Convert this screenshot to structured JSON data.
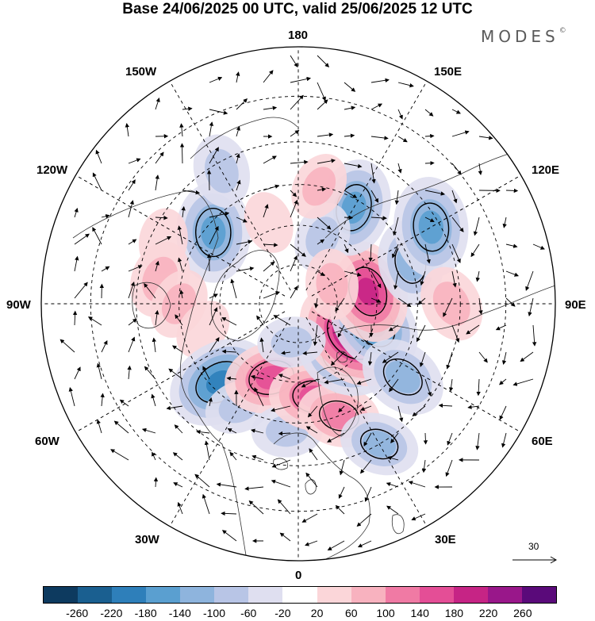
{
  "title": "Base 24/06/2025 00 UTC, valid 25/06/2025 12 UTC",
  "brand": {
    "name": "MODES",
    "mark": "©"
  },
  "map": {
    "projection": "north-polar-stereographic",
    "longitude_labels": {
      "top": "180",
      "bottom": "0",
      "left": "90W",
      "right": "90E",
      "upper_left_1": "150W",
      "upper_left_2": "120W",
      "lower_left_1": "60W",
      "lower_left_2": "30W",
      "upper_right_1": "150E",
      "upper_right_2": "120E",
      "lower_right_1": "60E",
      "lower_right_2": "30E"
    },
    "reference_vector": {
      "value": "30"
    },
    "anomalies": [
      {
        "lon": -130,
        "colat": 28,
        "value": -170
      },
      {
        "lon": -150,
        "colat": 38,
        "value": -80
      },
      {
        "lon": -160,
        "colat": 22,
        "value": 40
      },
      {
        "lon": -115,
        "colat": 37,
        "value": 50
      },
      {
        "lon": -100,
        "colat": 35,
        "value": 90
      },
      {
        "lon": -90,
        "colat": 30,
        "value": 70
      },
      {
        "lon": -75,
        "colat": 25,
        "value": 40
      },
      {
        "lon": -45,
        "colat": 28,
        "value": -190
      },
      {
        "lon": -30,
        "colat": 30,
        "value": -60
      },
      {
        "lon": -20,
        "colat": 20,
        "value": 150
      },
      {
        "lon": -5,
        "colat": 32,
        "value": -70
      },
      {
        "lon": 10,
        "colat": 24,
        "value": 140
      },
      {
        "lon": 20,
        "colat": 30,
        "value": 110
      },
      {
        "lon": 30,
        "colat": 40,
        "value": -100
      },
      {
        "lon": 40,
        "colat": 18,
        "value": -150
      },
      {
        "lon": 60,
        "colat": 16,
        "value": 230
      },
      {
        "lon": 75,
        "colat": 20,
        "value": -180
      },
      {
        "lon": 100,
        "colat": 18,
        "value": 180
      },
      {
        "lon": 110,
        "colat": 30,
        "value": -120
      },
      {
        "lon": 120,
        "colat": 38,
        "value": -170
      },
      {
        "lon": 90,
        "colat": 38,
        "value": 90
      },
      {
        "lon": 55,
        "colat": 32,
        "value": -130
      },
      {
        "lon": 150,
        "colat": 28,
        "value": -160
      },
      {
        "lon": 160,
        "colat": 18,
        "value": -70
      },
      {
        "lon": 170,
        "colat": 30,
        "value": 60
      },
      {
        "lon": -10,
        "colat": 10,
        "value": -60
      },
      {
        "lon": 120,
        "colat": 10,
        "value": 70
      }
    ]
  },
  "colorbar": {
    "colors": [
      "#0d3a5f",
      "#1a5f90",
      "#2e7fba",
      "#5a9fd0",
      "#8eb4dd",
      "#b8c5e6",
      "#dfdff0",
      "#ffffff",
      "#fbd6d9",
      "#f8b2bf",
      "#f07aa4",
      "#e44e96",
      "#c62485",
      "#99178a",
      "#5a0a7a"
    ],
    "tick_labels": [
      "-260",
      "-220",
      "-180",
      "-140",
      "-100",
      "-60",
      "-20",
      "20",
      "60",
      "100",
      "140",
      "180",
      "220",
      "260"
    ]
  }
}
